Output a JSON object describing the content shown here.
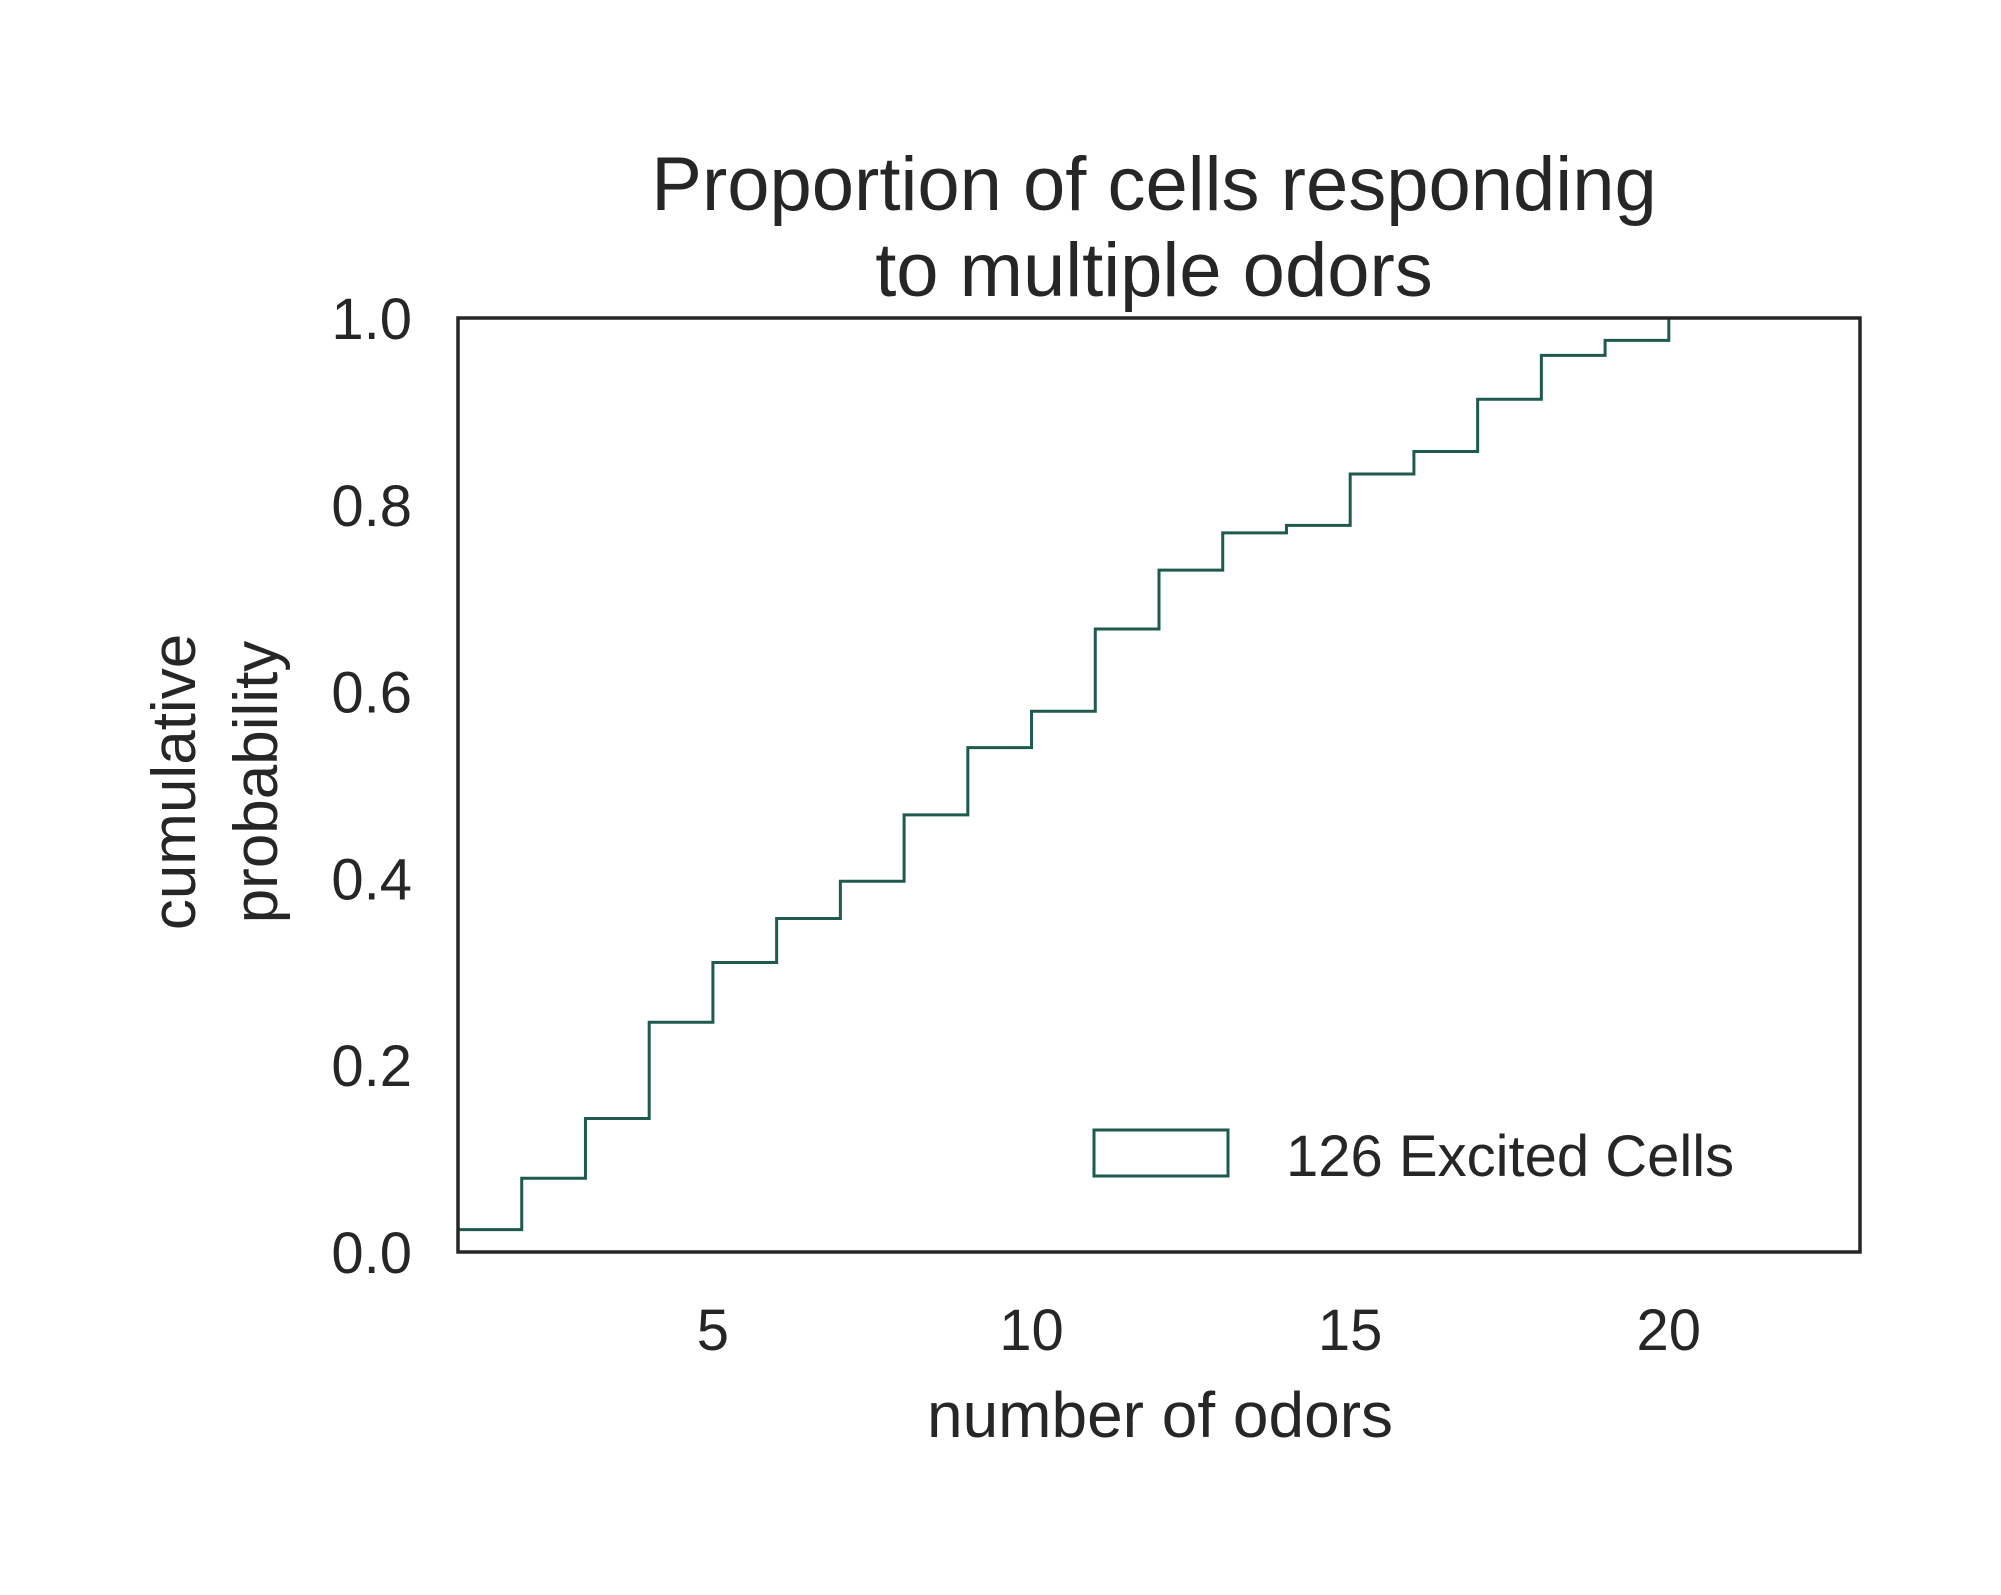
{
  "chart_data": {
    "type": "line",
    "subtype": "step-cdf",
    "title_lines": [
      "Proportion of cells responding",
      "to multiple odors"
    ],
    "xlabel": "number of odors",
    "ylabel_lines": [
      "cumulative",
      "probability"
    ],
    "xlim": [
      1,
      23
    ],
    "ylim": [
      0,
      1.0
    ],
    "x_ticks": [
      5,
      10,
      15,
      20
    ],
    "y_ticks": [
      0.0,
      0.2,
      0.4,
      0.6,
      0.8,
      1.0
    ],
    "x_tick_labels": [
      "5",
      "10",
      "15",
      "20"
    ],
    "y_tick_labels": [
      "0.0",
      "0.2",
      "0.4",
      "0.6",
      "0.8",
      "1.0"
    ],
    "grid": false,
    "legend_position": "lower-right",
    "series": [
      {
        "name": "126 Excited Cells",
        "color": "#1e5a4e",
        "style": "step",
        "x": [
          1,
          2,
          3,
          4,
          5,
          6,
          7,
          8,
          9,
          10,
          11,
          12,
          13,
          14,
          15,
          16,
          17,
          18,
          19,
          20
        ],
        "y": [
          0.024,
          0.079,
          0.143,
          0.246,
          0.31,
          0.357,
          0.397,
          0.468,
          0.54,
          0.579,
          0.667,
          0.73,
          0.77,
          0.778,
          0.833,
          0.857,
          0.913,
          0.96,
          0.976,
          1.0
        ]
      }
    ]
  }
}
